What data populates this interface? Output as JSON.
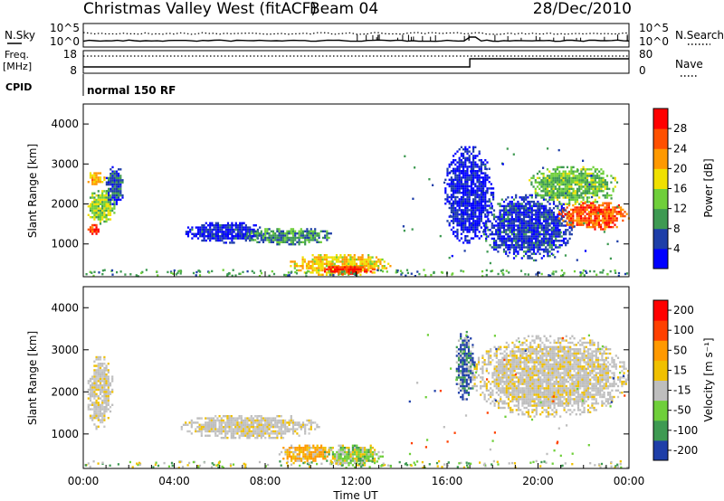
{
  "header": {
    "station": "Christmas Valley West (fitACF)",
    "beam": "Beam 04",
    "date": "28/Dec/2010"
  },
  "top_panels": {
    "nsky_label": "N.Sky",
    "nsearch_label": "N.Search",
    "freq_label": "Freq.",
    "freq_unit": "[MHz]",
    "nave_label": "Nave",
    "cpid_label": "CPID",
    "cpid_value": "normal 150 RF",
    "noise_ticks_left": [
      "10^5",
      "10^0"
    ],
    "noise_ticks_right": [
      "10^5",
      "10^0"
    ],
    "freq_ticks": [
      "18",
      "8"
    ],
    "nave_ticks": [
      "80",
      "0"
    ]
  },
  "chart_data": [
    {
      "type": "heatmap",
      "name": "power",
      "ylabel": "Slant Range [km]",
      "ylim": [
        180,
        4500
      ],
      "yticks": [
        "1000",
        "2000",
        "3000",
        "4000"
      ],
      "yticks_values": [
        1000,
        2000,
        3000,
        4000
      ],
      "xlim_hours": [
        0,
        24
      ],
      "colorbar_label": "Power [dB]",
      "colorbar_ticks": [
        "4",
        "8",
        "12",
        "16",
        "20",
        "24",
        "28"
      ],
      "colorbar_colors": [
        "#0000ff",
        "#1e3ea8",
        "#3e9a52",
        "#6fcf3a",
        "#f0e000",
        "#ff9900",
        "#ff5000",
        "#ff0000"
      ],
      "regions": [
        {
          "t": [
            0.1,
            0.7
          ],
          "r": [
            1250,
            1550
          ],
          "level": 0.85
        },
        {
          "t": [
            0.1,
            1.4
          ],
          "r": [
            1500,
            2400
          ],
          "level": 0.45
        },
        {
          "t": [
            0.1,
            0.9
          ],
          "r": [
            2500,
            2850
          ],
          "level": 0.65
        },
        {
          "t": [
            0.9,
            1.8
          ],
          "r": [
            2000,
            3000
          ],
          "level": 0.2
        },
        {
          "t": [
            4.4,
            8.0
          ],
          "r": [
            1050,
            1600
          ],
          "level": 0.12
        },
        {
          "t": [
            7.0,
            11.0
          ],
          "r": [
            1000,
            1450
          ],
          "level": 0.3
        },
        {
          "t": [
            9.0,
            13.5
          ],
          "r": [
            230,
            800
          ],
          "level": 0.6
        },
        {
          "t": [
            10.5,
            12.8
          ],
          "r": [
            230,
            500
          ],
          "level": 0.92
        },
        {
          "t": [
            15.8,
            18.0
          ],
          "r": [
            1000,
            3500
          ],
          "level": 0.1
        },
        {
          "t": [
            17.5,
            21.5
          ],
          "r": [
            600,
            2300
          ],
          "level": 0.15
        },
        {
          "t": [
            19.5,
            23.5
          ],
          "r": [
            2000,
            3000
          ],
          "level": 0.4
        },
        {
          "t": [
            20.8,
            24.0
          ],
          "r": [
            1350,
            2100
          ],
          "level": 0.8
        }
      ]
    },
    {
      "type": "heatmap",
      "name": "velocity",
      "ylabel": "Slant Range [km]",
      "ylim": [
        180,
        4500
      ],
      "yticks": [
        "1000",
        "2000",
        "3000",
        "4000"
      ],
      "yticks_values": [
        1000,
        2000,
        3000,
        4000
      ],
      "xlabel": "Time UT",
      "xticks": [
        "00:00",
        "04:00",
        "08:00",
        "12:00",
        "16:00",
        "20:00",
        "00:00"
      ],
      "xticks_hours": [
        0,
        4,
        8,
        12,
        16,
        20,
        24
      ],
      "colorbar_label": "Velocity [m s⁻¹]",
      "colorbar_ticks": [
        "200",
        "100",
        "50",
        "15",
        "-15",
        "-50",
        "-100",
        "-200"
      ],
      "colorbar_colors": [
        "#1e3ea8",
        "#3e9a52",
        "#6fcf3a",
        "#bebebe",
        "#f0c000",
        "#ff9900",
        "#ff4000",
        "#ff0000"
      ],
      "regions": [
        {
          "t": [
            0.1,
            1.3
          ],
          "r": [
            1100,
            2900
          ],
          "level": "gray"
        },
        {
          "t": [
            4.2,
            10.5
          ],
          "r": [
            900,
            1500
          ],
          "level": "gray"
        },
        {
          "t": [
            8.5,
            11.0
          ],
          "r": [
            350,
            800
          ],
          "level": "orange"
        },
        {
          "t": [
            10.5,
            13.2
          ],
          "r": [
            230,
            800
          ],
          "level": "green"
        },
        {
          "t": [
            16.3,
            17.2
          ],
          "r": [
            1800,
            3500
          ],
          "level": "blue"
        },
        {
          "t": [
            17.0,
            24.0
          ],
          "r": [
            1400,
            3400
          ],
          "level": "gray"
        }
      ]
    }
  ]
}
